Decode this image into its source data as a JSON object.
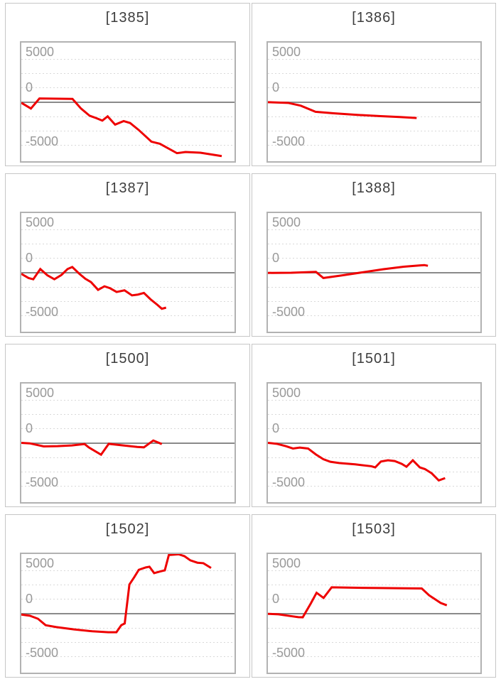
{
  "page": {
    "background": "#ffffff"
  },
  "colors": {
    "series_line": "#ee0000",
    "zero_line": "#8a8a8a",
    "gridline": "#d9d9d9",
    "chart_border": "#b2b2b2",
    "panel_border": "#c6c6c6",
    "axis_label": "#999999",
    "title_text": "#3d3d3d"
  },
  "chart_data": {
    "type": "line",
    "layout": "grid 2 columns x 4 rows",
    "ylim": [
      -6900,
      6900
    ],
    "x_axis": {
      "visible_labels": false,
      "x_unit_percent_of_width": true
    },
    "grid": "dotted horizontal gridlines, solid line at 0",
    "gridline_values": [
      5000,
      3333,
      1667,
      -1667,
      -3333,
      -5000
    ],
    "yticks": [
      {
        "label": "5000",
        "value": 5000
      },
      {
        "label": "0",
        "value": 0
      },
      {
        "label": "-5000",
        "value": -5000
      }
    ],
    "legend": "none",
    "series_color": "#ee0000",
    "charts": [
      {
        "title": "[1385]",
        "points": [
          [
            0,
            -100
          ],
          [
            4.5,
            -770
          ],
          [
            8.5,
            400
          ],
          [
            24,
            350
          ],
          [
            28,
            -770
          ],
          [
            32,
            -1600
          ],
          [
            35,
            -1870
          ],
          [
            38,
            -2170
          ],
          [
            40.5,
            -1680
          ],
          [
            44,
            -2640
          ],
          [
            48,
            -2230
          ],
          [
            51,
            -2450
          ],
          [
            55,
            -3250
          ],
          [
            58,
            -3930
          ],
          [
            61,
            -4620
          ],
          [
            65,
            -4870
          ],
          [
            73,
            -5960
          ],
          [
            77,
            -5830
          ],
          [
            84,
            -5910
          ],
          [
            94,
            -6300
          ]
        ]
      },
      {
        "title": "[1386]",
        "points": [
          [
            0,
            -30
          ],
          [
            9.5,
            -110
          ],
          [
            15.5,
            -440
          ],
          [
            22.4,
            -1150
          ],
          [
            31,
            -1320
          ],
          [
            42,
            -1510
          ],
          [
            53,
            -1650
          ],
          [
            62,
            -1760
          ],
          [
            70,
            -1870
          ]
        ]
      },
      {
        "title": "[1387]",
        "points": [
          [
            0,
            -170
          ],
          [
            3.4,
            -660
          ],
          [
            5.6,
            -800
          ],
          [
            8.9,
            390
          ],
          [
            12.2,
            -330
          ],
          [
            15.5,
            -800
          ],
          [
            18.8,
            -300
          ],
          [
            21.7,
            390
          ],
          [
            23.9,
            630
          ],
          [
            27,
            -110
          ],
          [
            30,
            -740
          ],
          [
            32.7,
            -1130
          ],
          [
            36,
            -2030
          ],
          [
            39,
            -1620
          ],
          [
            41.6,
            -1840
          ],
          [
            44.7,
            -2280
          ],
          [
            48.4,
            -2090
          ],
          [
            51.9,
            -2670
          ],
          [
            54.7,
            -2580
          ],
          [
            57.5,
            -2390
          ],
          [
            60.6,
            -3130
          ],
          [
            63.8,
            -3770
          ],
          [
            65.9,
            -4230
          ],
          [
            67.9,
            -4100
          ]
        ]
      },
      {
        "title": "[1388]",
        "points": [
          [
            0,
            -60
          ],
          [
            11,
            -40
          ],
          [
            22.6,
            60
          ],
          [
            26.1,
            -650
          ],
          [
            34.5,
            -360
          ],
          [
            44.3,
            0
          ],
          [
            54.1,
            360
          ],
          [
            63.9,
            660
          ],
          [
            71.7,
            820
          ],
          [
            73.6,
            850
          ],
          [
            75.3,
            770
          ]
        ]
      },
      {
        "title": "[1500]",
        "points": [
          [
            0,
            0
          ],
          [
            4,
            -60
          ],
          [
            10.5,
            -410
          ],
          [
            17,
            -385
          ],
          [
            23.7,
            -300
          ],
          [
            29.7,
            -140
          ],
          [
            31.6,
            -520
          ],
          [
            37.4,
            -1375
          ],
          [
            41,
            -110
          ],
          [
            47.8,
            -300
          ],
          [
            54.4,
            -470
          ],
          [
            57.5,
            -520
          ],
          [
            61.9,
            275
          ],
          [
            65.9,
            -140
          ]
        ]
      },
      {
        "title": "[1501]",
        "points": [
          [
            0,
            0
          ],
          [
            4.2,
            -110
          ],
          [
            8.5,
            -385
          ],
          [
            11.8,
            -660
          ],
          [
            15,
            -550
          ],
          [
            18.9,
            -660
          ],
          [
            22.6,
            -1350
          ],
          [
            26.1,
            -1900
          ],
          [
            29.4,
            -2200
          ],
          [
            33.5,
            -2340
          ],
          [
            41.1,
            -2500
          ],
          [
            48.7,
            -2720
          ],
          [
            50.5,
            -2860
          ],
          [
            53.2,
            -2170
          ],
          [
            56.5,
            -2030
          ],
          [
            59.7,
            -2120
          ],
          [
            63,
            -2450
          ],
          [
            65.2,
            -2780
          ],
          [
            68.2,
            -2030
          ],
          [
            71.5,
            -2860
          ],
          [
            73.9,
            -3050
          ],
          [
            77.1,
            -3545
          ],
          [
            80.4,
            -4370
          ],
          [
            83.4,
            -4100
          ]
        ]
      },
      {
        "title": "[1502]",
        "points": [
          [
            0,
            -140
          ],
          [
            4,
            -280
          ],
          [
            7.8,
            -630
          ],
          [
            11.4,
            -1380
          ],
          [
            16.4,
            -1600
          ],
          [
            24.7,
            -1870
          ],
          [
            33.3,
            -2090
          ],
          [
            40.8,
            -2200
          ],
          [
            44.6,
            -2200
          ],
          [
            46.9,
            -1375
          ],
          [
            48.5,
            -1180
          ],
          [
            50.7,
            3350
          ],
          [
            52.9,
            4180
          ],
          [
            55.1,
            5060
          ],
          [
            58.4,
            5340
          ],
          [
            60.1,
            5420
          ],
          [
            62.3,
            4675
          ],
          [
            65.1,
            4870
          ],
          [
            67.3,
            5000
          ],
          [
            69.2,
            6790
          ],
          [
            73.8,
            6870
          ],
          [
            76.5,
            6650
          ],
          [
            79.3,
            6160
          ],
          [
            82.6,
            5890
          ],
          [
            85.4,
            5830
          ],
          [
            89,
            5280
          ]
        ]
      },
      {
        "title": "[1503]",
        "points": [
          [
            0,
            -60
          ],
          [
            5,
            -110
          ],
          [
            9.4,
            -275
          ],
          [
            14.3,
            -440
          ],
          [
            16.4,
            -460
          ],
          [
            20.2,
            1155
          ],
          [
            22.9,
            2390
          ],
          [
            26.2,
            1790
          ],
          [
            30,
            3025
          ],
          [
            42,
            2970
          ],
          [
            53,
            2940
          ],
          [
            64,
            2915
          ],
          [
            72.4,
            2890
          ],
          [
            75.9,
            2090
          ],
          [
            78.4,
            1680
          ],
          [
            81.3,
            1210
          ],
          [
            84.2,
            935
          ]
        ]
      }
    ]
  }
}
